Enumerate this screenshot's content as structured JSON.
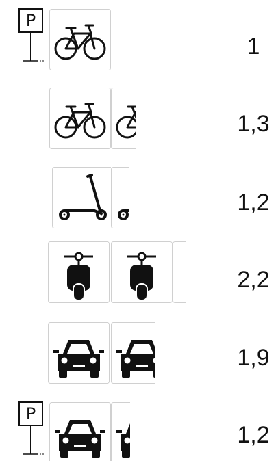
{
  "parking_sign": "P",
  "rows": [
    {
      "label": "1"
    },
    {
      "label": "1,3"
    },
    {
      "label": "1,2"
    },
    {
      "label": "2,2"
    },
    {
      "label": "1,9"
    },
    {
      "label": "1,2"
    }
  ]
}
